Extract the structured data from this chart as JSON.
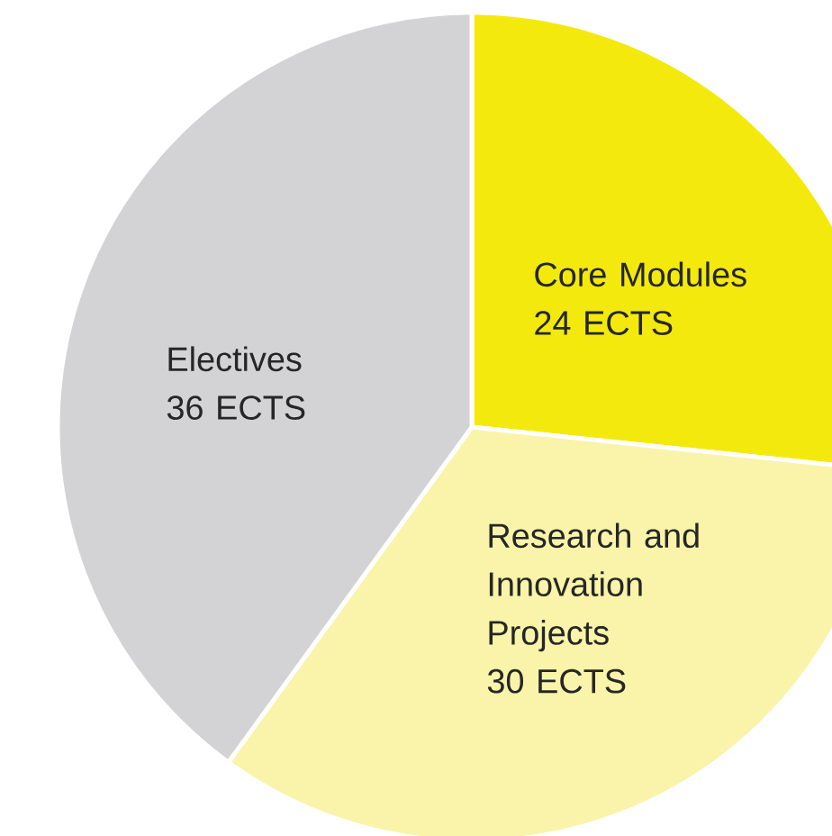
{
  "chart_data": {
    "type": "pie",
    "categories": [
      "Core Modules",
      "Research and Innovation Projects",
      "Electives"
    ],
    "values": [
      24,
      30,
      36
    ],
    "value_labels": [
      "24 ECTS",
      "30 ECTS",
      "36 ECTS"
    ],
    "colors": [
      "#f4e90c",
      "#f9f4a9",
      "#d3d3d5"
    ]
  }
}
